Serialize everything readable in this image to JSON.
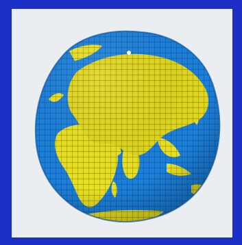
{
  "image": {
    "subject": "globe-mesh",
    "colors": {
      "outer_background": "#1b2fc4",
      "panel_background": "#eaeef1",
      "ocean": "#1f7fd6",
      "ocean_shade": "#0f4f9a",
      "land": "#e8df2a",
      "land_shade": "#b7aa12",
      "mesh_line": "#0a2140"
    }
  }
}
